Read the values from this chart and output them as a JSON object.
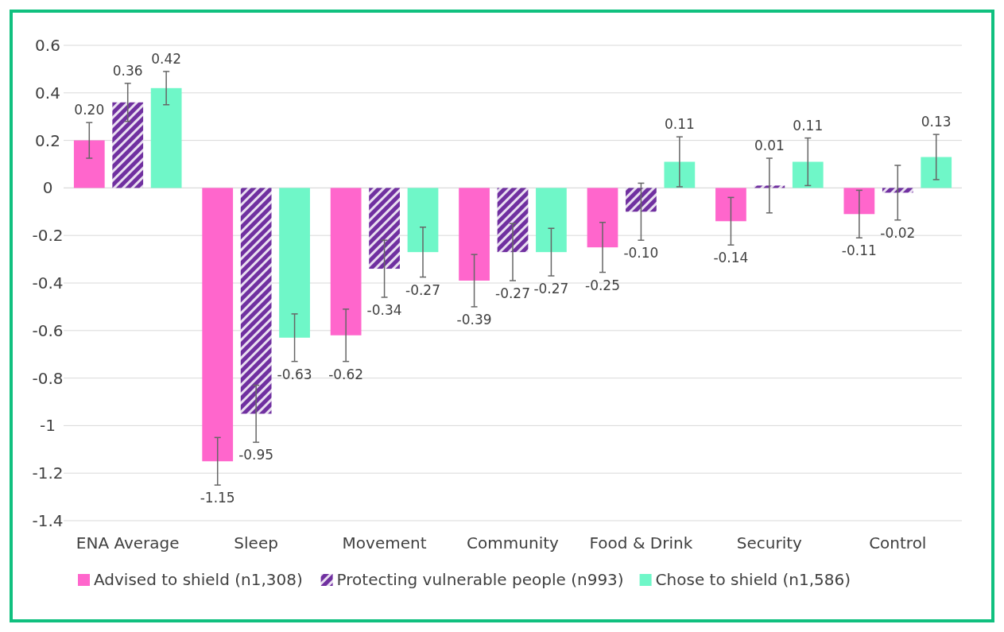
{
  "chart_data": {
    "type": "bar",
    "categories": [
      "ENA Average",
      "Sleep",
      "Movement",
      "Community",
      "Food & Drink",
      "Security",
      "Control"
    ],
    "series": [
      {
        "name": "Advised to shield (n1,308)",
        "color": "#ff66cc",
        "values": [
          0.2,
          -1.15,
          -0.62,
          -0.39,
          -0.25,
          -0.14,
          -0.11
        ],
        "errors": [
          0.075,
          0.1,
          0.11,
          0.11,
          0.105,
          0.1,
          0.1
        ],
        "value_labels": [
          "0.20",
          "-1.15",
          "-0.62",
          "-0.39",
          "-0.25",
          "-0.14",
          "-0.11"
        ]
      },
      {
        "name": "Protecting vulnerable people (n993)",
        "color": "#7030a0",
        "values": [
          0.36,
          -0.95,
          -0.34,
          -0.27,
          -0.1,
          0.01,
          -0.02
        ],
        "errors": [
          0.08,
          0.12,
          0.12,
          0.12,
          0.12,
          0.115,
          0.115
        ],
        "value_labels": [
          "0.36",
          "-0.95",
          "-0.34",
          "-0.27",
          "-0.10",
          "0.01",
          "-0.02"
        ]
      },
      {
        "name": "Chose to shield (n1,586)",
        "color": "#6ff7c8",
        "values": [
          0.42,
          -0.63,
          -0.27,
          -0.27,
          0.11,
          0.11,
          0.13
        ],
        "errors": [
          0.07,
          0.1,
          0.105,
          0.1,
          0.105,
          0.1,
          0.095
        ],
        "value_labels": [
          "0.42",
          "-0.63",
          "-0.27",
          "-0.27",
          "0.11",
          "0.11",
          "0.13"
        ]
      }
    ],
    "ylim": [
      -1.4,
      0.6
    ],
    "yticks": [
      {
        "value": -1.4,
        "label": "-1.4"
      },
      {
        "value": -1.2,
        "label": "-1.2"
      },
      {
        "value": -1,
        "label": "-1"
      },
      {
        "value": -0.8,
        "label": "-0.8"
      },
      {
        "value": -0.6,
        "label": "-0.6"
      },
      {
        "value": -0.4,
        "label": "-0.4"
      },
      {
        "value": -0.2,
        "label": "-0.2"
      },
      {
        "value": 0,
        "label": "0"
      },
      {
        "value": 0.2,
        "label": "0.2"
      },
      {
        "value": 0.4,
        "label": "0.4"
      },
      {
        "value": 0.6,
        "label": "0.6"
      }
    ],
    "grid": "y",
    "legend": "bottom"
  }
}
